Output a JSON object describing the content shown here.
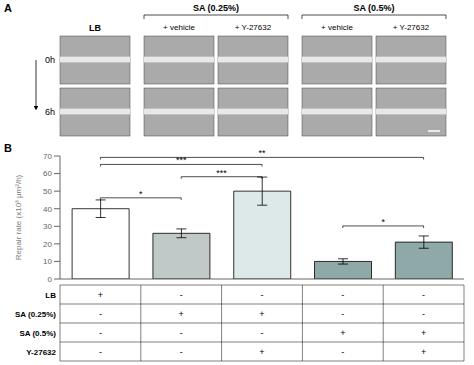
{
  "chart_data": {
    "type": "bar",
    "categories": [
      null,
      null,
      null,
      null,
      null
    ],
    "values": [
      40,
      26,
      50,
      10,
      21
    ],
    "errors": [
      5,
      2.5,
      8,
      1.5,
      3.5
    ],
    "colors": [
      "white",
      "#c0c8c8",
      "#dde8e8",
      "#8fa8a8",
      "#8fa8a8"
    ],
    "edge_colors": [
      "black",
      "black",
      "black",
      "black",
      "black"
    ],
    "ylim": [
      0,
      70
    ],
    "yticks": [
      0,
      10,
      20,
      30,
      40,
      50,
      60,
      70
    ],
    "ylabel": "Repair rate (x10³ μm²/h)",
    "tick_labels": "y",
    "grid": false,
    "significance": [
      {
        "from": 0,
        "to": 1,
        "y": 45,
        "label": "*"
      },
      {
        "from": 1,
        "to": 2,
        "y": 57,
        "label": "***"
      },
      {
        "from": 0,
        "to": 2,
        "y": 64,
        "label": "***"
      },
      {
        "from": 0,
        "to": 4,
        "y": 68,
        "label": "**"
      },
      {
        "from": 3,
        "to": 4,
        "y": 29,
        "label": "*"
      }
    ],
    "table_rows": [
      "LB",
      "SA (0.25%)",
      "SA (0.5%)",
      "Y-27632"
    ],
    "table_data": [
      [
        "+",
        "-",
        "-",
        "-",
        "-"
      ],
      [
        "-",
        "+",
        "+",
        "-",
        "-"
      ],
      [
        "-",
        "-",
        "-",
        "+",
        "+"
      ],
      [
        "-",
        "-",
        "+",
        "-",
        "+"
      ]
    ],
    "panel_labels": [
      "A",
      "B"
    ],
    "image_panel": {
      "column_headers": [
        "LB",
        "SA (0.25%)",
        "SA (0.5%)"
      ],
      "sub_headers": [
        "+ vehicle",
        "+ Y-27632"
      ],
      "time_labels": [
        "0h",
        "6h"
      ]
    }
  }
}
